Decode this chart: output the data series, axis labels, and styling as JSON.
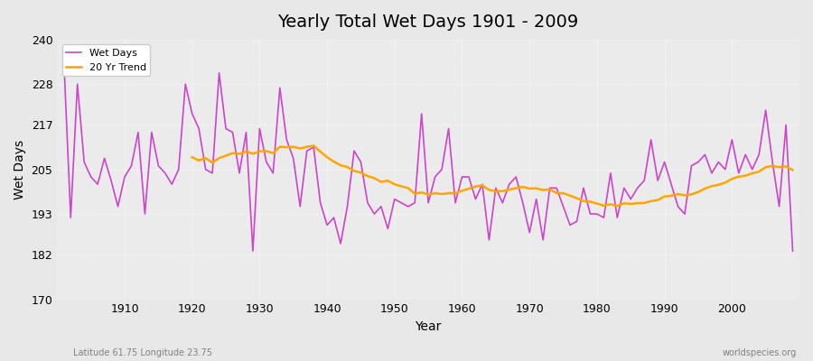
{
  "title": "Yearly Total Wet Days 1901 - 2009",
  "xlabel": "Year",
  "ylabel": "Wet Days",
  "bottom_left": "Latitude 61.75 Longitude 23.75",
  "bottom_right": "worldspecies.org",
  "line_color": "#CC44CC",
  "trend_color": "#FFA500",
  "ylim": [
    170,
    240
  ],
  "yticks": [
    170,
    182,
    193,
    205,
    217,
    228,
    240
  ],
  "bg_color": "#E8E8E8",
  "plot_bg": "#EBEBEB",
  "years": [
    1901,
    1902,
    1903,
    1904,
    1905,
    1906,
    1907,
    1908,
    1909,
    1910,
    1911,
    1912,
    1913,
    1914,
    1915,
    1916,
    1917,
    1918,
    1919,
    1920,
    1921,
    1922,
    1923,
    1924,
    1925,
    1926,
    1927,
    1928,
    1929,
    1930,
    1931,
    1932,
    1933,
    1934,
    1935,
    1936,
    1937,
    1938,
    1939,
    1940,
    1941,
    1942,
    1943,
    1944,
    1945,
    1946,
    1947,
    1948,
    1949,
    1950,
    1951,
    1952,
    1953,
    1954,
    1955,
    1956,
    1957,
    1958,
    1959,
    1960,
    1961,
    1962,
    1963,
    1964,
    1965,
    1966,
    1967,
    1968,
    1969,
    1970,
    1971,
    1972,
    1973,
    1974,
    1975,
    1976,
    1977,
    1978,
    1979,
    1980,
    1981,
    1982,
    1983,
    1984,
    1985,
    1986,
    1987,
    1988,
    1989,
    1990,
    1991,
    1992,
    1993,
    1994,
    1995,
    1996,
    1997,
    1998,
    1999,
    2000,
    2001,
    2002,
    2003,
    2004,
    2005,
    2006,
    2007,
    2008,
    2009
  ],
  "wet_days": [
    234,
    192,
    228,
    207,
    203,
    201,
    208,
    202,
    195,
    203,
    206,
    215,
    193,
    215,
    206,
    204,
    201,
    205,
    228,
    220,
    216,
    205,
    204,
    231,
    216,
    215,
    204,
    215,
    183,
    216,
    207,
    204,
    227,
    213,
    208,
    195,
    210,
    211,
    196,
    190,
    192,
    185,
    195,
    210,
    207,
    196,
    193,
    195,
    189,
    197,
    196,
    195,
    196,
    220,
    196,
    203,
    205,
    216,
    196,
    203,
    203,
    197,
    201,
    186,
    200,
    196,
    201,
    203,
    196,
    188,
    197,
    186,
    200,
    200,
    195,
    190,
    191,
    200,
    193,
    193,
    192,
    204,
    192,
    200,
    197,
    200,
    202,
    213,
    202,
    207,
    201,
    195,
    193,
    206,
    207,
    209,
    204,
    207,
    205,
    213,
    204,
    209,
    205,
    209,
    221,
    207,
    195,
    217,
    183
  ],
  "trend_window": 20
}
